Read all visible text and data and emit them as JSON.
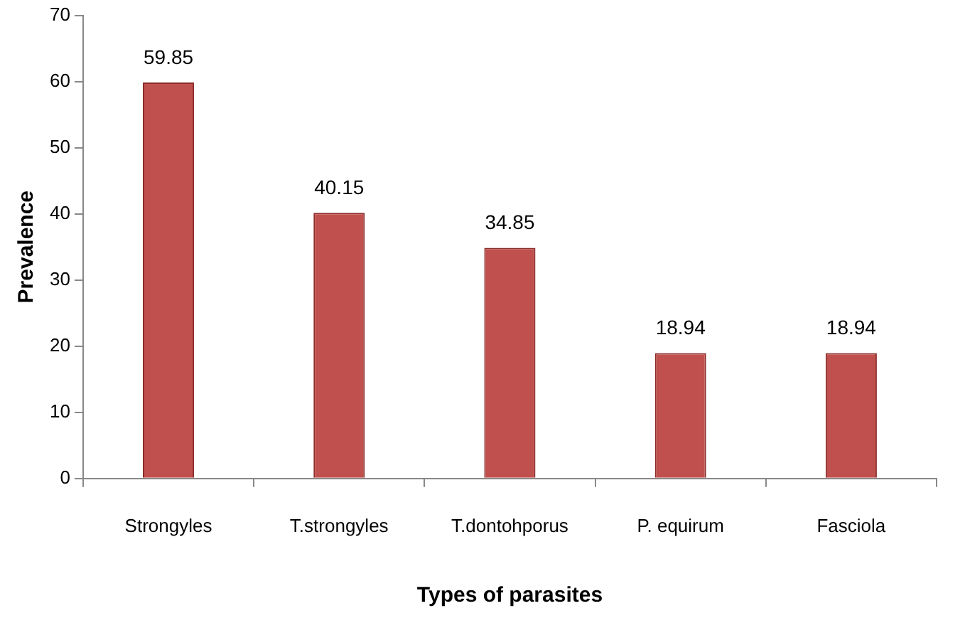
{
  "chart_data": {
    "type": "bar",
    "xlabel": "Types of parasites",
    "ylabel": "Prevalence",
    "categories": [
      "Strongyles",
      "T.strongyles",
      "T.dontohporus",
      "P. equirum",
      "Fasciola"
    ],
    "values": [
      59.85,
      40.15,
      34.85,
      18.94,
      18.94
    ],
    "color": "#c0504d",
    "ylim": [
      0,
      70
    ],
    "yticks": [
      0,
      10,
      20,
      30,
      40,
      50,
      60,
      70
    ],
    "grid": false,
    "legend": false,
    "data_labels": true
  }
}
